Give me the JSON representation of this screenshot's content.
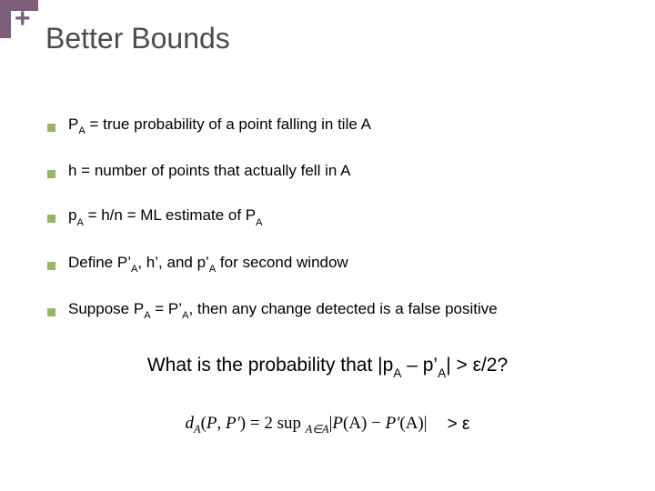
{
  "theme": {
    "accent": "#7a5e7a",
    "plus_color": "#7a5e7a",
    "title_color": "#4c4c4c",
    "bullet_color": "#96b566",
    "text_color": "#000000",
    "body_fontsize": 17,
    "title_fontsize": 32,
    "question_fontsize": 21
  },
  "decor": {
    "plus": "+"
  },
  "title": "Better Bounds",
  "bullets": [
    {
      "pre": "P",
      "sub": "A",
      "post": " = true probability of a point falling in tile A"
    },
    {
      "pre": "h = number of points that actually fell in A",
      "sub": "",
      "post": ""
    },
    {
      "pre": "p",
      "sub": "A",
      "post": " = h/n = ML estimate of P",
      "sub2": "A"
    },
    {
      "pre": "Define P’",
      "sub": "A",
      "post": ", h’, and p’",
      "sub2": "A",
      "post2": " for second window"
    },
    {
      "pre": "Suppose P",
      "sub": "A",
      "post": " = P’",
      "sub2": "A",
      "post2": ", then any change detected is a false positive"
    }
  ],
  "question": {
    "pre": "What is the probability that |p",
    "sub": "A",
    "mid": " – p’",
    "sub2": "A",
    "post": "| > ε/2?"
  },
  "formula": {
    "d": "d",
    "Asub": "A",
    "lpar": "(",
    "P": "P",
    "comma": ", ",
    "Pp": "P′",
    "rpar": ")",
    "eq": " = 2 sup ",
    "Ain": "A∈A",
    "bar1": "|",
    "PA": "P",
    "PAs": "(A)",
    "minus": " − ",
    "PpA": "P′",
    "PpAs": "(A)",
    "bar2": "|"
  },
  "gt_eps": "> ε"
}
